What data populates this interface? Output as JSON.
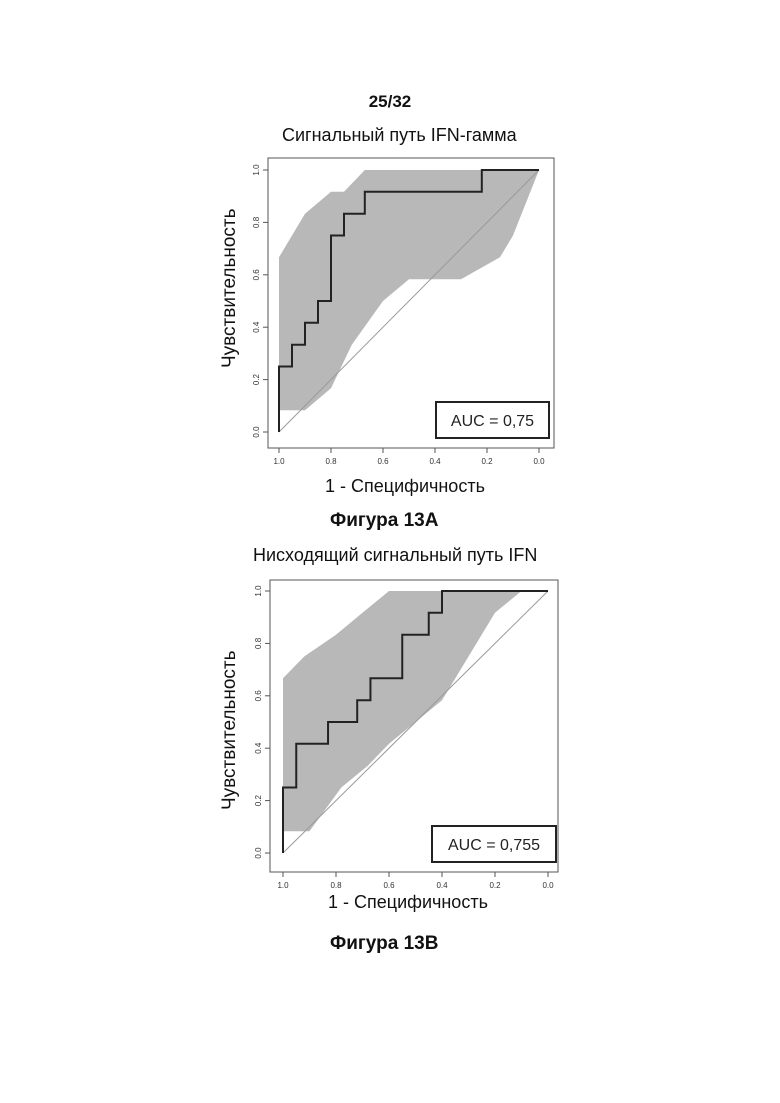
{
  "page_number": "25/32",
  "chart_data": [
    {
      "type": "line",
      "title": "Сигнальный путь IFN-гамма",
      "xlabel": "1 - Специфичность",
      "ylabel": "Чувствительность",
      "xlim": [
        1.0,
        0.0
      ],
      "ylim": [
        0.0,
        1.0
      ],
      "x_ticks": [
        "1.0",
        "0.8",
        "0.6",
        "0.4",
        "0.2",
        "0.0"
      ],
      "y_ticks": [
        "0.0",
        "0.2",
        "0.4",
        "0.6",
        "0.8",
        "1.0"
      ],
      "annotation": "AUC = 0,75",
      "caption": "Фигура 13A",
      "roc_curve": {
        "x": [
          1.0,
          1.0,
          0.95,
          0.95,
          0.9,
          0.9,
          0.85,
          0.85,
          0.8,
          0.8,
          0.75,
          0.75,
          0.67,
          0.67,
          0.22,
          0.22,
          0.1,
          0.1,
          0.0
        ],
        "y": [
          0.0,
          0.25,
          0.25,
          0.333,
          0.333,
          0.417,
          0.417,
          0.5,
          0.5,
          0.75,
          0.75,
          0.833,
          0.833,
          0.917,
          0.917,
          1.0,
          1.0,
          1.0,
          1.0
        ]
      },
      "ci_upper": {
        "x": [
          1.0,
          1.0,
          0.9,
          0.8,
          0.75,
          0.67,
          0.5,
          0.0
        ],
        "y": [
          0.083,
          0.667,
          0.833,
          0.917,
          0.917,
          1.0,
          1.0,
          1.0
        ]
      },
      "ci_lower": {
        "x": [
          1.0,
          0.9,
          0.8,
          0.72,
          0.6,
          0.5,
          0.3,
          0.15,
          0.1,
          0.0
        ],
        "y": [
          0.083,
          0.083,
          0.167,
          0.333,
          0.5,
          0.583,
          0.583,
          0.667,
          0.75,
          1.0
        ]
      },
      "reference_line": {
        "x": [
          1.0,
          0.0
        ],
        "y": [
          0.0,
          1.0
        ]
      }
    },
    {
      "type": "line",
      "title": "Нисходящий сигнальный путь IFN",
      "xlabel": "1 - Специфичность",
      "ylabel": "Чувствительность",
      "xlim": [
        1.0,
        0.0
      ],
      "ylim": [
        0.0,
        1.0
      ],
      "x_ticks": [
        "1.0",
        "0.8",
        "0.6",
        "0.4",
        "0.2",
        "0.0"
      ],
      "y_ticks": [
        "0.0",
        "0.2",
        "0.4",
        "0.6",
        "0.8",
        "1.0"
      ],
      "annotation": "AUC = 0,755",
      "caption": "Фигура 13B",
      "roc_curve": {
        "x": [
          1.0,
          1.0,
          0.95,
          0.95,
          0.83,
          0.83,
          0.72,
          0.72,
          0.67,
          0.67,
          0.55,
          0.55,
          0.45,
          0.45,
          0.4,
          0.4,
          0.0
        ],
        "y": [
          0.0,
          0.25,
          0.25,
          0.417,
          0.417,
          0.5,
          0.5,
          0.583,
          0.583,
          0.667,
          0.667,
          0.833,
          0.833,
          0.917,
          0.917,
          1.0,
          1.0
        ]
      },
      "ci_upper": {
        "x": [
          1.0,
          1.0,
          0.92,
          0.8,
          0.7,
          0.6,
          0.5,
          0.45,
          0.0
        ],
        "y": [
          0.083,
          0.667,
          0.75,
          0.833,
          0.917,
          1.0,
          1.0,
          1.0,
          1.0
        ]
      },
      "ci_lower": {
        "x": [
          1.0,
          0.9,
          0.78,
          0.68,
          0.6,
          0.5,
          0.4,
          0.3,
          0.2,
          0.1,
          0.0
        ],
        "y": [
          0.083,
          0.083,
          0.25,
          0.333,
          0.417,
          0.5,
          0.583,
          0.75,
          0.917,
          1.0,
          1.0
        ]
      },
      "reference_line": {
        "x": [
          1.0,
          0.0
        ],
        "y": [
          0.0,
          1.0
        ]
      }
    }
  ]
}
